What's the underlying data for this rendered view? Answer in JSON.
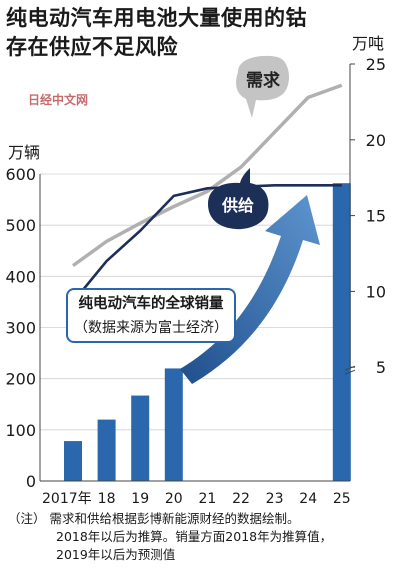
{
  "title": {
    "line1": "纯电动汽车用电池大量使用的钴",
    "line2": "存在供应不足风险"
  },
  "watermark": "日经中文网",
  "note": {
    "prefix": "（注）",
    "line1": "需求和供给根据彭博新能源财经的数据绘制。",
    "line2": "2018年以后为推算。销量方面2018年为推算值，",
    "line3": "2019年以后为预测值"
  },
  "colors": {
    "bar": "#2a67ad",
    "demand": "#b0b0b0",
    "supply": "#1c2f57",
    "arrow_dark": "#1f4f8c",
    "arrow_light": "#5e95cf"
  },
  "chart_data": {
    "type": "bar+line",
    "x_tick_labels": [
      "2017年",
      "18",
      "19",
      "20",
      "21",
      "22",
      "23",
      "24",
      "25"
    ],
    "x": [
      2017,
      2018,
      2019,
      2020,
      2021,
      2022,
      2023,
      2024,
      2025
    ],
    "bars": {
      "name": "纯电动汽车的全球销量",
      "source": "（数据来源为富士经济）",
      "unit": "万辆",
      "values": [
        78,
        120,
        167,
        220,
        null,
        null,
        null,
        null,
        582
      ],
      "ylim": [
        0,
        600
      ],
      "ticks": [
        0,
        100,
        200,
        300,
        400,
        500,
        600
      ]
    },
    "lines": {
      "unit": "万吨",
      "ylim": [
        0,
        25
      ],
      "ticks": [
        5,
        10,
        15,
        20,
        25
      ],
      "series": [
        {
          "name": "需求",
          "values": [
            11.7,
            13.3,
            14.5,
            15.6,
            16.6,
            18.2,
            20.5,
            22.8,
            23.6
          ]
        },
        {
          "name": "供给",
          "values": [
            9.3,
            12.0,
            14.0,
            16.3,
            16.8,
            16.9,
            17.0,
            17.0,
            17.0
          ]
        }
      ]
    }
  }
}
